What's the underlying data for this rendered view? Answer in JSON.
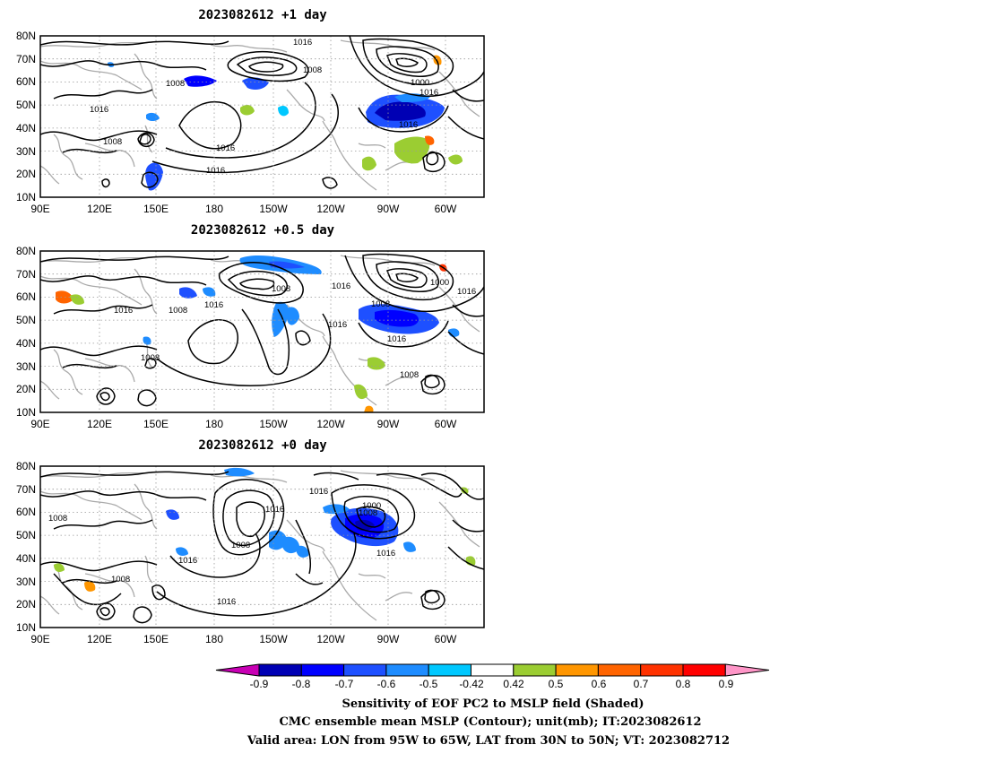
{
  "panels": [
    {
      "title": "2023082612  +1 day",
      "contour_labels": [
        "1016",
        "1008",
        "1000",
        "1016",
        "1008",
        "1016",
        "1016",
        "1016",
        "1016",
        "1008"
      ]
    },
    {
      "title": "2023082612  +0.5 day",
      "contour_labels": [
        "1008",
        "1016",
        "1000",
        "1016",
        "1008",
        "1016",
        "1016",
        "1008",
        "1016",
        "1008",
        "1016",
        "1008"
      ]
    },
    {
      "title": "2023082612  +0 day",
      "contour_labels": [
        "1016",
        "1000",
        "1008",
        "1016",
        "1008",
        "1008",
        "1016",
        "1016",
        "1008",
        "1016"
      ]
    }
  ],
  "axes": {
    "lat_ticks": [
      "80N",
      "70N",
      "60N",
      "50N",
      "40N",
      "30N",
      "20N",
      "10N"
    ],
    "lon_ticks": [
      "90E",
      "120E",
      "150E",
      "180",
      "150W",
      "120W",
      "90W",
      "60W"
    ],
    "lat_range": [
      10,
      80
    ],
    "lon_range": [
      "90E",
      "50W"
    ]
  },
  "colorbar": {
    "tick_labels": [
      "-0.9",
      "-0.8",
      "-0.7",
      "-0.6",
      "-0.5",
      "-0.42",
      "0.42",
      "0.5",
      "0.6",
      "0.7",
      "0.8",
      "0.9"
    ],
    "colors": [
      "#c800b4",
      "#0000b4",
      "#0000ff",
      "#1e50ff",
      "#1e8cff",
      "#00c8ff",
      "#ffffff",
      "#9bcd32",
      "#ff9600",
      "#ff6400",
      "#ff3200",
      "#ff0000",
      "#ff96c8"
    ]
  },
  "caption": {
    "line1": "Sensitivity of EOF PC2 to MSLP field (Shaded)",
    "line2": "CMC ensemble mean MSLP (Contour); unit(mb); IT:2023082612",
    "line3": "Valid area: LON from 95W to 65W, LAT from 30N to 50N; VT: 2023082712"
  }
}
